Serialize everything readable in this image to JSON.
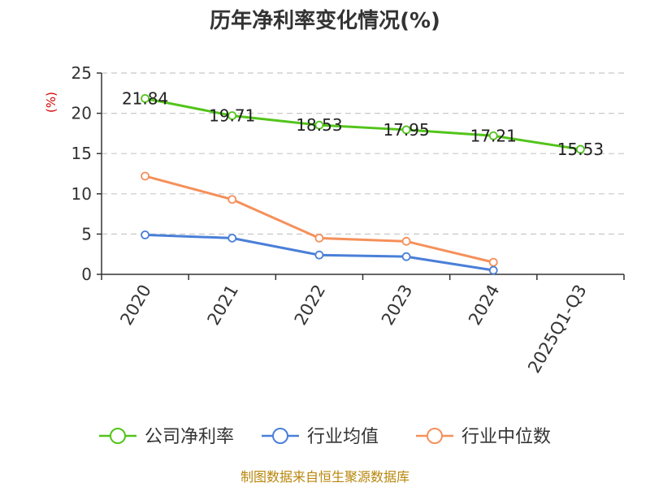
{
  "chart_data": {
    "type": "line",
    "title": "历年净利率变化情况(%)",
    "ylabel": "(%)",
    "ylim": [
      0,
      25
    ],
    "yticks": [
      0,
      5,
      10,
      15,
      20,
      25
    ],
    "grid": true,
    "legend_position": "bottom",
    "categories": [
      "2020",
      "2021",
      "2022",
      "2023",
      "2024",
      "2025Q1-Q3"
    ],
    "series": [
      {
        "name": "公司净利率",
        "color": "#52c41a",
        "values": [
          21.84,
          19.71,
          18.53,
          17.95,
          17.21,
          15.53
        ],
        "labels": [
          "21.84",
          "19.71",
          "18.53",
          "17.95",
          "17.21",
          "15.53"
        ]
      },
      {
        "name": "行业均值",
        "color": "#4a7fd8",
        "values": [
          4.9,
          4.5,
          2.4,
          2.2,
          0.5,
          null
        ]
      },
      {
        "name": "行业中位数",
        "color": "#f5905a",
        "values": [
          12.2,
          9.3,
          4.5,
          4.1,
          1.5,
          null
        ]
      }
    ],
    "source": "制图数据来自恒生聚源数据库"
  }
}
